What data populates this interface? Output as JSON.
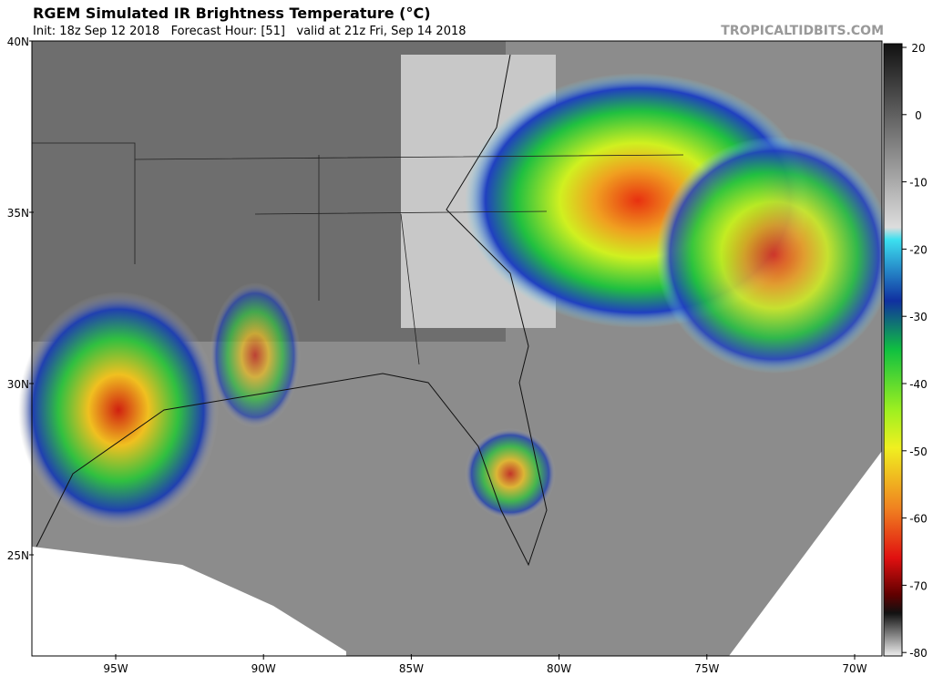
{
  "header": {
    "title": "RGEM Simulated IR Brightness Temperature (°C)",
    "subtitle": "Init: 18z Sep 12 2018   Forecast Hour: [51]   valid at 21z Fri, Sep 14 2018",
    "credit": "TROPICALTIDBITS.COM"
  },
  "map": {
    "lat_labels": [
      "40N",
      "35N",
      "30N",
      "25N"
    ],
    "lon_labels": [
      "95W",
      "90W",
      "85W",
      "80W",
      "75W",
      "70W"
    ]
  },
  "colorbar": {
    "ticks": [
      20,
      0,
      -10,
      -20,
      -30,
      -40,
      -50,
      -60,
      -70,
      -80
    ]
  }
}
